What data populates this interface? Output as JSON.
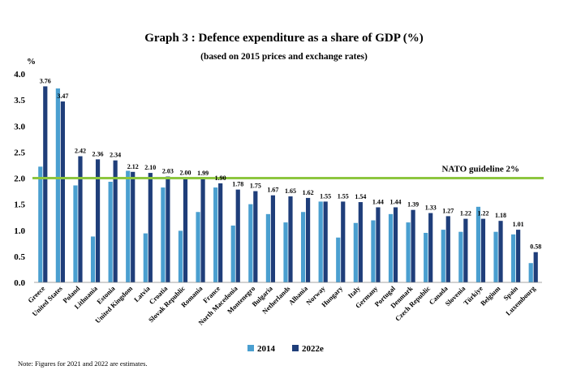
{
  "chart_data": {
    "type": "bar",
    "title": "Graph 3 : Defence expenditure as a share of GDP (%)",
    "subtitle": "(based on 2015 prices and exchange rates)",
    "ylabel": "%",
    "ylim": [
      0,
      4.0
    ],
    "yticks": [
      "0.0",
      "0.5",
      "1.0",
      "1.5",
      "2.0",
      "2.5",
      "3.0",
      "3.5",
      "4.0"
    ],
    "grid": false,
    "legend_position": "bottom",
    "categories": [
      "Greece",
      "United States",
      "Poland",
      "Lithuania",
      "Estonia",
      "United Kingdom",
      "Latvia",
      "Croatia",
      "Slovak Republic",
      "Romania",
      "France",
      "North Macedonia",
      "Montenegro",
      "Bulgaria",
      "Netherlands",
      "Albania",
      "Norway",
      "Hungary",
      "Italy",
      "Germany",
      "Portugal",
      "Denmark",
      "Czech Republic",
      "Canada",
      "Slovenia",
      "Türkiye",
      "Belgium",
      "Spain",
      "Luxembourg"
    ],
    "series": [
      {
        "name": "2014",
        "color": "#4a9fd0",
        "values": [
          2.22,
          3.72,
          1.86,
          0.88,
          1.93,
          2.14,
          0.94,
          1.82,
          0.99,
          1.35,
          1.82,
          1.09,
          1.5,
          1.31,
          1.15,
          1.35,
          1.55,
          0.86,
          1.14,
          1.19,
          1.31,
          1.15,
          0.95,
          1.01,
          0.97,
          1.45,
          0.97,
          0.92,
          0.37
        ],
        "labels": []
      },
      {
        "name": "2022e",
        "color": "#1f3e7a",
        "values": [
          3.76,
          3.47,
          2.42,
          2.36,
          2.34,
          2.12,
          2.1,
          2.03,
          2.0,
          1.99,
          1.9,
          1.78,
          1.75,
          1.67,
          1.65,
          1.62,
          1.55,
          1.55,
          1.54,
          1.44,
          1.44,
          1.39,
          1.33,
          1.27,
          1.22,
          1.22,
          1.18,
          1.01,
          0.58
        ],
        "labels": [
          "3.76",
          "3.47",
          "2.42",
          "2.36",
          "2.34",
          "2.12",
          "2.10",
          "2.03",
          "2.00",
          "1.99",
          "1.90",
          "1.78",
          "1.75",
          "1.67",
          "1.65",
          "1.62",
          "1.55",
          "1.55",
          "1.54",
          "1.44",
          "1.44",
          "1.39",
          "1.33",
          "1.27",
          "1.22",
          "1.22",
          "1.18",
          "1.01",
          "0.58"
        ]
      }
    ],
    "reference_line": {
      "value": 2.0,
      "label": "NATO guideline 2%",
      "color": "#8dc63f"
    },
    "note": "Note: Figures for 2021 and 2022 are estimates."
  }
}
